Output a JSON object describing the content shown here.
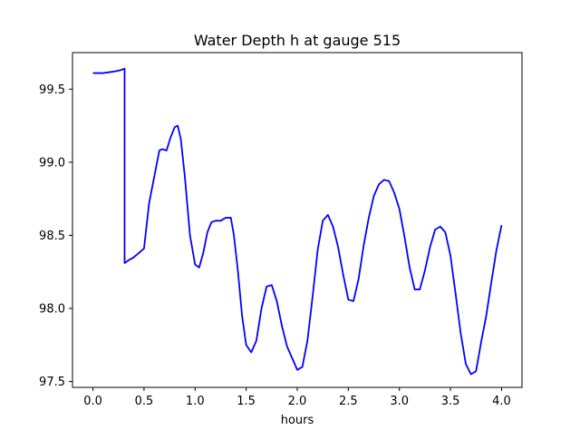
{
  "chart_data": {
    "type": "line",
    "title": "Water Depth h at gauge 515",
    "xlabel": "hours",
    "ylabel": "",
    "xlim": [
      -0.2,
      4.2
    ],
    "ylim": [
      97.46,
      99.75
    ],
    "grid": false,
    "xticks": [
      0.0,
      0.5,
      1.0,
      1.5,
      2.0,
      2.5,
      3.0,
      3.5,
      4.0
    ],
    "xtick_labels": [
      "0.0",
      "0.5",
      "1.0",
      "1.5",
      "2.0",
      "2.5",
      "3.0",
      "3.5",
      "4.0"
    ],
    "yticks": [
      97.5,
      98.0,
      98.5,
      99.0,
      99.5
    ],
    "ytick_labels": [
      "97.5",
      "98.0",
      "98.5",
      "99.0",
      "99.5"
    ],
    "series": [
      {
        "color": "#0000ff",
        "x": [
          0.0,
          0.1,
          0.2,
          0.27,
          0.31,
          0.31,
          0.35,
          0.4,
          0.45,
          0.5,
          0.55,
          0.6,
          0.65,
          0.68,
          0.72,
          0.76,
          0.8,
          0.83,
          0.86,
          0.9,
          0.95,
          1.0,
          1.04,
          1.08,
          1.12,
          1.16,
          1.2,
          1.25,
          1.3,
          1.35,
          1.38,
          1.42,
          1.46,
          1.5,
          1.55,
          1.6,
          1.65,
          1.7,
          1.75,
          1.8,
          1.85,
          1.9,
          1.95,
          2.0,
          2.05,
          2.1,
          2.15,
          2.2,
          2.25,
          2.3,
          2.35,
          2.4,
          2.45,
          2.5,
          2.55,
          2.6,
          2.65,
          2.7,
          2.75,
          2.8,
          2.85,
          2.9,
          2.95,
          3.0,
          3.05,
          3.1,
          3.15,
          3.2,
          3.25,
          3.3,
          3.35,
          3.4,
          3.45,
          3.5,
          3.55,
          3.6,
          3.65,
          3.7,
          3.75,
          3.8,
          3.85,
          3.9,
          3.95,
          4.0
        ],
        "y": [
          99.61,
          99.61,
          99.62,
          99.63,
          99.64,
          98.31,
          98.33,
          98.35,
          98.38,
          98.41,
          98.72,
          98.9,
          99.08,
          99.09,
          99.08,
          99.17,
          99.24,
          99.25,
          99.16,
          98.9,
          98.5,
          98.3,
          98.28,
          98.38,
          98.52,
          98.59,
          98.6,
          98.6,
          98.62,
          98.62,
          98.5,
          98.25,
          97.95,
          97.75,
          97.7,
          97.78,
          98.0,
          98.15,
          98.16,
          98.05,
          97.88,
          97.74,
          97.66,
          97.58,
          97.6,
          97.78,
          98.08,
          98.4,
          98.6,
          98.64,
          98.56,
          98.42,
          98.23,
          98.06,
          98.05,
          98.2,
          98.43,
          98.62,
          98.77,
          98.85,
          98.88,
          98.87,
          98.79,
          98.68,
          98.49,
          98.28,
          98.13,
          98.13,
          98.26,
          98.42,
          98.54,
          98.56,
          98.52,
          98.36,
          98.1,
          97.83,
          97.62,
          97.55,
          97.57,
          97.77,
          97.95,
          98.18,
          98.4,
          98.57
        ]
      }
    ]
  }
}
